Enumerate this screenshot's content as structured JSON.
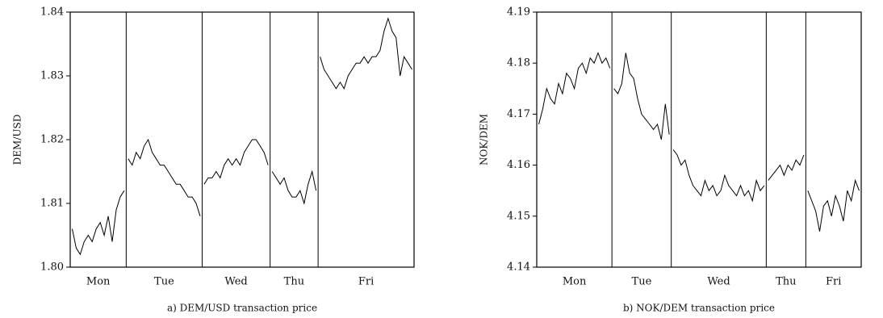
{
  "chart_data": [
    {
      "type": "line",
      "title": "a) DEM/USD transaction price",
      "ylabel": "DEM/USD",
      "color": "#000000",
      "ylim": [
        1.8,
        1.84
      ],
      "yticks": [
        {
          "value": 1.8,
          "label": "1.80"
        },
        1.81,
        1.82,
        1.83,
        1.84
      ],
      "days": [
        {
          "label": "Mon",
          "values": [
            1.806,
            1.803,
            1.802,
            1.804,
            1.805,
            1.804,
            1.806,
            1.807,
            1.805,
            1.808,
            1.804,
            1.809,
            1.811,
            1.812
          ]
        },
        {
          "label": "Tue",
          "values": [
            1.817,
            1.816,
            1.818,
            1.817,
            1.819,
            1.82,
            1.818,
            1.817,
            1.816,
            1.816,
            1.815,
            1.814,
            1.813,
            1.813,
            1.812,
            1.811,
            1.811,
            1.81,
            1.808
          ]
        },
        {
          "label": "Wed",
          "values": [
            1.813,
            1.814,
            1.814,
            1.815,
            1.814,
            1.816,
            1.817,
            1.816,
            1.817,
            1.816,
            1.818,
            1.819,
            1.82,
            1.82,
            1.819,
            1.818,
            1.816
          ]
        },
        {
          "label": "Thu",
          "values": [
            1.815,
            1.814,
            1.813,
            1.814,
            1.812,
            1.811,
            1.811,
            1.812,
            1.81,
            1.813,
            1.815,
            1.812
          ]
        },
        {
          "label": "Fri",
          "values": [
            1.833,
            1.831,
            1.83,
            1.829,
            1.828,
            1.829,
            1.828,
            1.83,
            1.831,
            1.832,
            1.832,
            1.833,
            1.832,
            1.833,
            1.833,
            1.834,
            1.837,
            1.839,
            1.837,
            1.836,
            1.83,
            1.833,
            1.832,
            1.831
          ]
        }
      ]
    },
    {
      "type": "line",
      "title": "b) NOK/DEM transaction price",
      "ylabel": "NOK/DEM",
      "color": "#000000",
      "ylim": [
        4.14,
        4.19
      ],
      "yticks": [
        4.14,
        4.15,
        4.16,
        4.17,
        4.18,
        4.19
      ],
      "days": [
        {
          "label": "Mon",
          "values": [
            4.168,
            4.171,
            4.175,
            4.173,
            4.172,
            4.176,
            4.174,
            4.178,
            4.177,
            4.175,
            4.179,
            4.18,
            4.178,
            4.181,
            4.18,
            4.182,
            4.18,
            4.181,
            4.179
          ]
        },
        {
          "label": "Tue",
          "values": [
            4.175,
            4.174,
            4.176,
            4.182,
            4.178,
            4.177,
            4.173,
            4.17,
            4.169,
            4.168,
            4.167,
            4.168,
            4.165,
            4.172,
            4.166
          ]
        },
        {
          "label": "Wed",
          "values": [
            4.163,
            4.162,
            4.16,
            4.161,
            4.158,
            4.156,
            4.155,
            4.154,
            4.157,
            4.155,
            4.156,
            4.154,
            4.155,
            4.158,
            4.156,
            4.155,
            4.154,
            4.156,
            4.154,
            4.155,
            4.153,
            4.157,
            4.155,
            4.156
          ]
        },
        {
          "label": "Thu",
          "values": [
            4.157,
            4.158,
            4.159,
            4.16,
            4.158,
            4.16,
            4.159,
            4.161,
            4.16,
            4.162
          ]
        },
        {
          "label": "Fri",
          "values": [
            4.155,
            4.153,
            4.151,
            4.147,
            4.152,
            4.153,
            4.15,
            4.154,
            4.152,
            4.149,
            4.155,
            4.153,
            4.157,
            4.155
          ]
        }
      ]
    }
  ]
}
